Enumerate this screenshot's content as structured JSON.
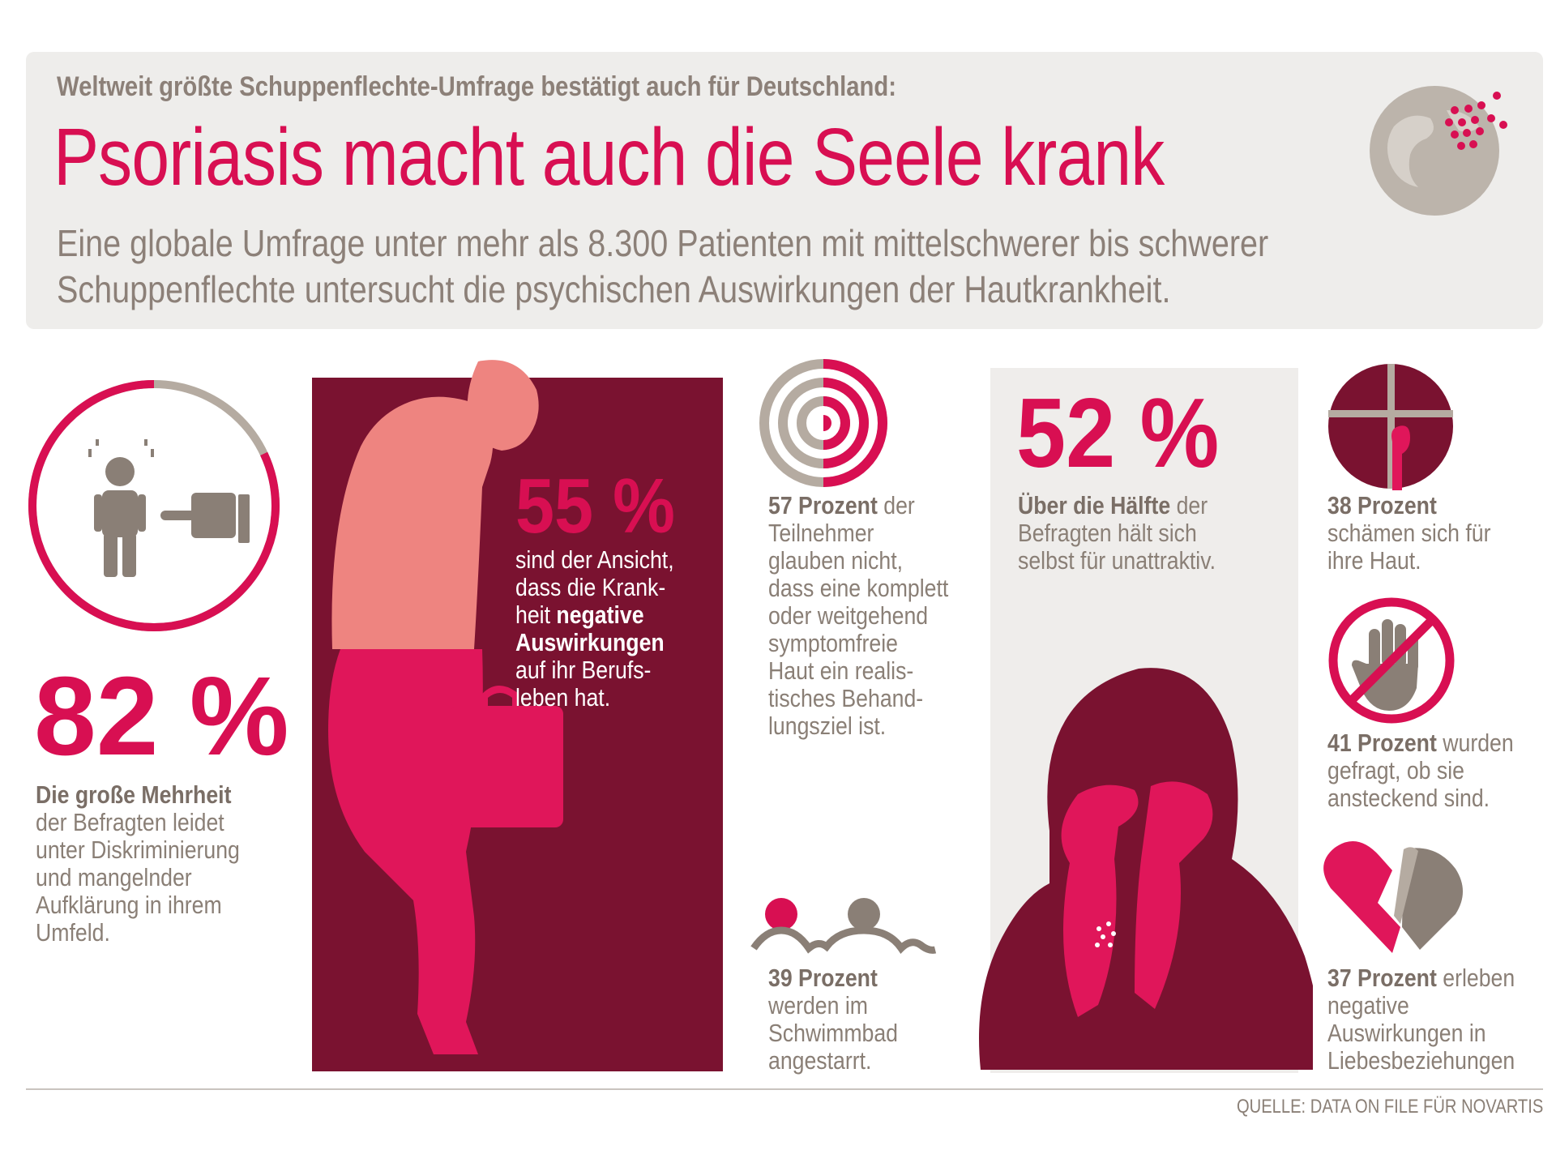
{
  "header": {
    "kicker": "Weltweit größte Schuppenflechte-Umfrage bestätigt auch für Deutschland:",
    "title": "Psoriasis macht auch die Seele krank",
    "subtitle_line1": "Eine globale Umfrage unter mehr als 8.300 Patienten mit mittelschwerer bis schwerer",
    "subtitle_line2": "Schuppenflechte untersucht die psychischen Auswirkungen der Hautkrankheit."
  },
  "stat82": {
    "value": "82 %",
    "ring_fraction": 0.82,
    "text_bold": "Die große Mehrheit",
    "text_rest": "der Befragten leidet unter Diskriminierung und mangelnder Aufklärung in ihrem Umfeld."
  },
  "stat55": {
    "value": "55 %",
    "l1": "sind der Ansicht,",
    "l2": "dass die Krank-",
    "l3_pre": "heit",
    "l3_bold": "negative",
    "l4_bold": "Auswirkungen",
    "l5": "auf ihr Berufs-",
    "l6": "leben hat."
  },
  "stat57": {
    "bold": "57 Prozent",
    "rest": "der Teilnehmer glauben nicht, dass eine komplett oder weitgehend symptomfreie Haut ein realis-tisches Behand-lungsziel ist."
  },
  "stat52": {
    "value": "52 %",
    "bold": "Über die Hälfte",
    "rest_inline": "der",
    "rest": "Befragten hält sich selbst für unattraktiv."
  },
  "stat38": {
    "bold": "38 Prozent",
    "rest": "schämen sich für ihre Haut."
  },
  "stat41": {
    "bold": "41 Prozent",
    "rest_inline": "wurden",
    "rest": "gefragt, ob sie ansteckend sind."
  },
  "stat39": {
    "bold": "39 Prozent",
    "rest": "werden im Schwimmbad angestarrt."
  },
  "stat37": {
    "bold": "37 Prozent",
    "rest": "erleben negative Auswirkungen in Liebesbeziehungen"
  },
  "source": "QUELLE: DATA ON FILE FÜR NOVARTIS",
  "colors": {
    "magenta": "#d80f52",
    "burgundy": "#7a1230",
    "pink": "#ee8480",
    "grey": "#8a7f76",
    "beige": "#b5aba1"
  }
}
